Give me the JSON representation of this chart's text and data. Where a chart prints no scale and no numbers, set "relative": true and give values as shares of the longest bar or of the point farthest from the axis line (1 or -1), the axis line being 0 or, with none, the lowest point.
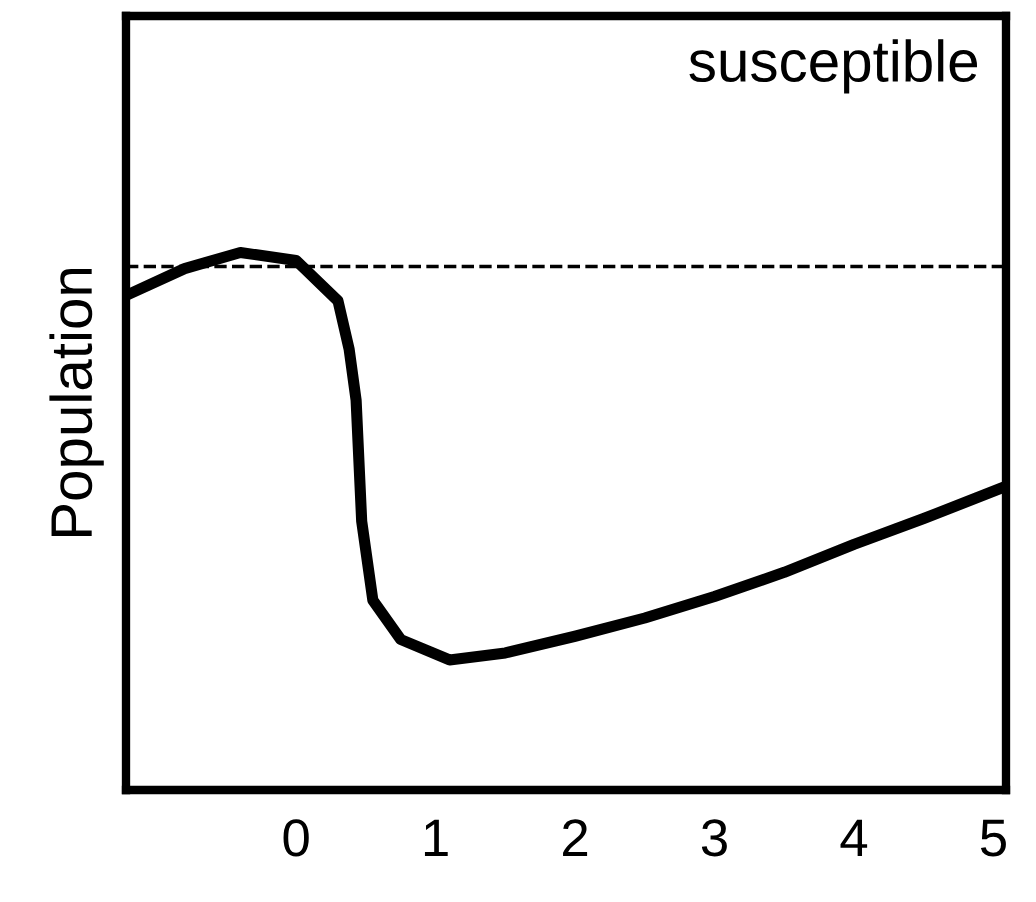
{
  "chart_data": {
    "type": "line",
    "ylabel": "Population",
    "relative": true,
    "annotations": [
      "susceptible"
    ],
    "x": [
      -1.22,
      -0.8,
      -0.4,
      0,
      0.3,
      0.38,
      0.43,
      0.47,
      0.55,
      0.75,
      1.1,
      1.5,
      2,
      2.5,
      3,
      3.5,
      4,
      4.5,
      5.09
    ],
    "series": [
      {
        "color": "#000000",
        "values": [
          0.92,
          0.97,
          1.0,
          0.985,
          0.91,
          0.82,
          0.725,
          0.5,
          0.353,
          0.28,
          0.242,
          0.255,
          0.286,
          0.32,
          0.36,
          0.405,
          0.457,
          0.505,
          0.565
        ]
      }
    ],
    "xlim": [
      -1.22,
      5.09
    ],
    "xticks": [
      0,
      1,
      2,
      3,
      4,
      5
    ],
    "ref_lines": [
      {
        "axis": "y",
        "value": 0.974,
        "color": "#000000",
        "line_style": "dashed"
      }
    ],
    "grid": false,
    "legend": false,
    "marker": "none",
    "line_style": "solid",
    "tick_labels": "x"
  }
}
